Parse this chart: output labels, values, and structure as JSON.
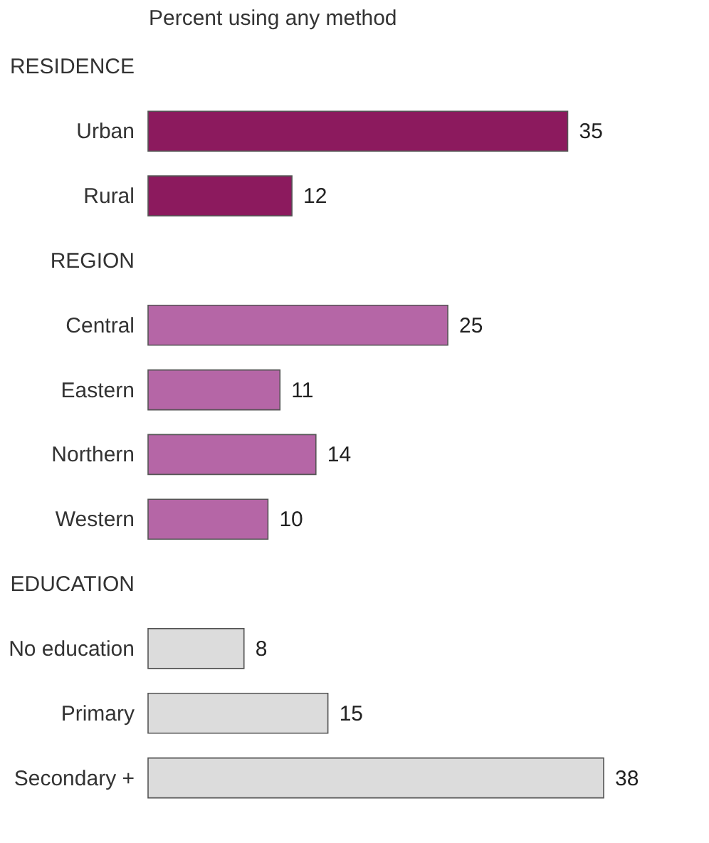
{
  "chart_data": {
    "type": "bar",
    "orientation": "horizontal",
    "xlabel": "Percent using any method",
    "categories": [
      "RESIDENCE",
      "Urban",
      "Rural",
      "REGION",
      "Central",
      "Eastern",
      "Northern",
      "Western",
      "EDUCATION",
      "No education",
      "Primary",
      "Secondary +"
    ],
    "values": [
      null,
      35,
      12,
      null,
      25,
      11,
      14,
      10,
      null,
      8,
      15,
      38
    ],
    "colors": [
      null,
      "#8c1a5e",
      "#8c1a5e",
      null,
      "#b566a6",
      "#b566a6",
      "#b566a6",
      "#b566a6",
      null,
      "#dcdcdc",
      "#dcdcdc",
      "#dcdcdc"
    ],
    "data_labels": true,
    "grid": false
  }
}
